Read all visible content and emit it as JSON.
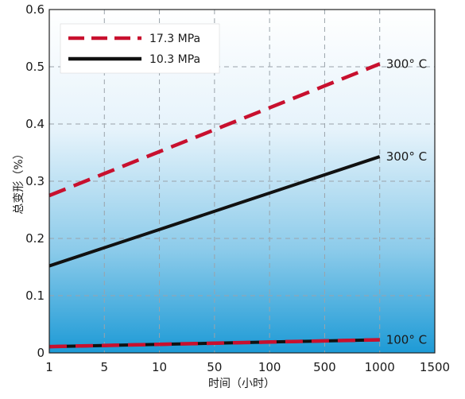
{
  "chart_data": {
    "type": "line",
    "title": "",
    "xlabel": "时间（小时）",
    "ylabel": "总变形（%）",
    "x_tick_labels": [
      "1",
      "5",
      "10",
      "50",
      "100",
      "500",
      "1000",
      "1500"
    ],
    "y_ticks": [
      0,
      0.1,
      0.2,
      0.3,
      0.4,
      0.5,
      0.6
    ],
    "y_tick_labels": [
      "0",
      "0.1",
      "0.2",
      "0.3",
      "0.4",
      "0.5",
      "0.6"
    ],
    "ylim": [
      0,
      0.6
    ],
    "grid": true,
    "legend_position": "top-left",
    "legend": [
      {
        "label": "17.3 MPa",
        "color": "#c8102e",
        "style": "dashed"
      },
      {
        "label": "10.3 MPa",
        "color": "#111111",
        "style": "solid"
      }
    ],
    "series": [
      {
        "legend_index": 0,
        "color": "#c8102e",
        "style": "dashed",
        "x": [
          "1",
          "1000"
        ],
        "y": [
          0.275,
          0.505
        ],
        "annotation": "300° C"
      },
      {
        "legend_index": 1,
        "color": "#111111",
        "style": "solid",
        "x": [
          "1",
          "1000"
        ],
        "y": [
          0.152,
          0.343
        ],
        "annotation": "300° C"
      },
      {
        "legend_index": 1,
        "color": "#111111",
        "style": "solid",
        "x": [
          "1",
          "1000"
        ],
        "y": [
          0.011,
          0.023
        ],
        "annotation": null
      },
      {
        "legend_index": 0,
        "color": "#c8102e",
        "style": "dashed",
        "x": [
          "1",
          "1000"
        ],
        "y": [
          0.011,
          0.023
        ],
        "annotation": "100° C"
      }
    ]
  }
}
